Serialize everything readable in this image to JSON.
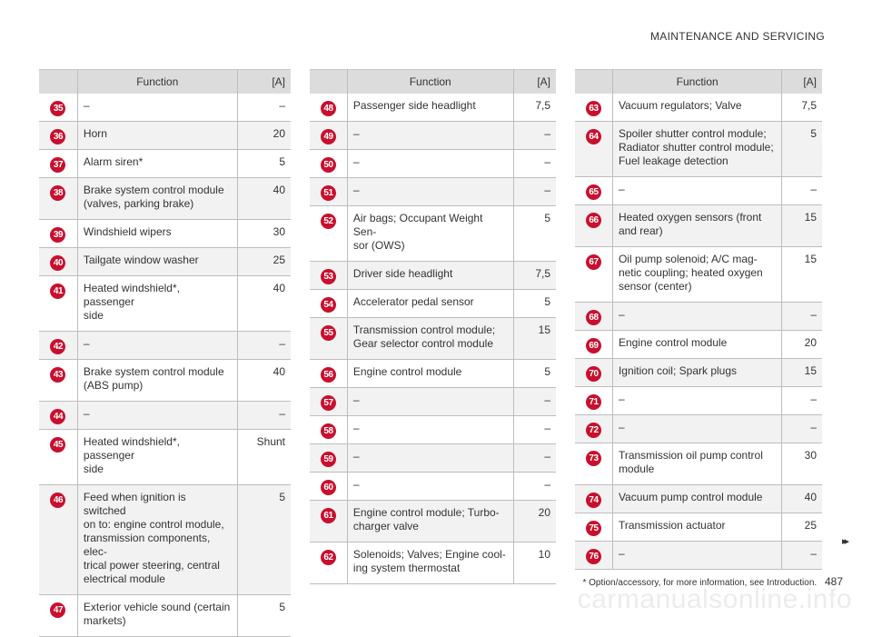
{
  "header": {
    "title": "MAINTENANCE AND SERVICING"
  },
  "columns": [
    {
      "head": {
        "function": "Function",
        "amp": "[A]"
      },
      "rows": [
        {
          "num": "35",
          "fn": "–",
          "amp": "–"
        },
        {
          "num": "36",
          "fn": "Horn",
          "amp": "20"
        },
        {
          "num": "37",
          "fn": "Alarm siren*",
          "amp": "5"
        },
        {
          "num": "38",
          "fn": "Brake system control module\n(valves, parking brake)",
          "amp": "40"
        },
        {
          "num": "39",
          "fn": "Windshield wipers",
          "amp": "30"
        },
        {
          "num": "40",
          "fn": "Tailgate window washer",
          "amp": "25"
        },
        {
          "num": "41",
          "fn": "Heated windshield*, passenger\nside",
          "amp": "40"
        },
        {
          "num": "42",
          "fn": "–",
          "amp": "–"
        },
        {
          "num": "43",
          "fn": "Brake system control module\n(ABS pump)",
          "amp": "40"
        },
        {
          "num": "44",
          "fn": "–",
          "amp": "–"
        },
        {
          "num": "45",
          "fn": "Heated windshield*, passenger\nside",
          "amp": "Shunt"
        },
        {
          "num": "46",
          "fn": "Feed when ignition is switched\non to: engine control module,\ntransmission components, elec-\ntrical power steering, central\nelectrical module",
          "amp": "5"
        },
        {
          "num": "47",
          "fn": "Exterior vehicle sound (certain\nmarkets)",
          "amp": "5"
        }
      ]
    },
    {
      "head": {
        "function": "Function",
        "amp": "[A]"
      },
      "rows": [
        {
          "num": "48",
          "fn": "Passenger side headlight",
          "amp": "7,5"
        },
        {
          "num": "49",
          "fn": "–",
          "amp": "–"
        },
        {
          "num": "50",
          "fn": "–",
          "amp": "–"
        },
        {
          "num": "51",
          "fn": "–",
          "amp": "–"
        },
        {
          "num": "52",
          "fn": "Air bags; Occupant Weight Sen-\nsor (OWS)",
          "amp": "5"
        },
        {
          "num": "53",
          "fn": "Driver side headlight",
          "amp": "7,5"
        },
        {
          "num": "54",
          "fn": "Accelerator pedal sensor",
          "amp": "5"
        },
        {
          "num": "55",
          "fn": "Transmission control module;\nGear selector control module",
          "amp": "15"
        },
        {
          "num": "56",
          "fn": "Engine control module",
          "amp": "5"
        },
        {
          "num": "57",
          "fn": "–",
          "amp": "–"
        },
        {
          "num": "58",
          "fn": "–",
          "amp": "–"
        },
        {
          "num": "59",
          "fn": "–",
          "amp": "–"
        },
        {
          "num": "60",
          "fn": "–",
          "amp": "–"
        },
        {
          "num": "61",
          "fn": "Engine control module; Turbo-\ncharger valve",
          "amp": "20"
        },
        {
          "num": "62",
          "fn": "Solenoids; Valves; Engine cool-\ning system thermostat",
          "amp": "10"
        }
      ]
    },
    {
      "head": {
        "function": "Function",
        "amp": "[A]"
      },
      "rows": [
        {
          "num": "63",
          "fn": "Vacuum regulators; Valve",
          "amp": "7,5"
        },
        {
          "num": "64",
          "fn": "Spoiler shutter control module;\nRadiator shutter control module;\nFuel leakage detection",
          "amp": "5"
        },
        {
          "num": "65",
          "fn": "–",
          "amp": "–"
        },
        {
          "num": "66",
          "fn": "Heated oxygen sensors (front\nand rear)",
          "amp": "15"
        },
        {
          "num": "67",
          "fn": "Oil pump solenoid; A/C mag-\nnetic coupling; heated oxygen\nsensor (center)",
          "amp": "15"
        },
        {
          "num": "68",
          "fn": "–",
          "amp": "–"
        },
        {
          "num": "69",
          "fn": "Engine control module",
          "amp": "20"
        },
        {
          "num": "70",
          "fn": "Ignition coil; Spark plugs",
          "amp": "15"
        },
        {
          "num": "71",
          "fn": "–",
          "amp": "–"
        },
        {
          "num": "72",
          "fn": "–",
          "amp": "–"
        },
        {
          "num": "73",
          "fn": "Transmission oil pump control\nmodule",
          "amp": "30"
        },
        {
          "num": "74",
          "fn": "Vacuum pump control module",
          "amp": "40"
        },
        {
          "num": "75",
          "fn": "Transmission actuator",
          "amp": "25"
        },
        {
          "num": "76",
          "fn": "–",
          "amp": "–"
        }
      ]
    }
  ],
  "footer": {
    "next_icon": "▸▸",
    "note": "* Option/accessory, for more information, see Introduction.",
    "page": "487"
  },
  "watermark": "carmanualsonline.info"
}
